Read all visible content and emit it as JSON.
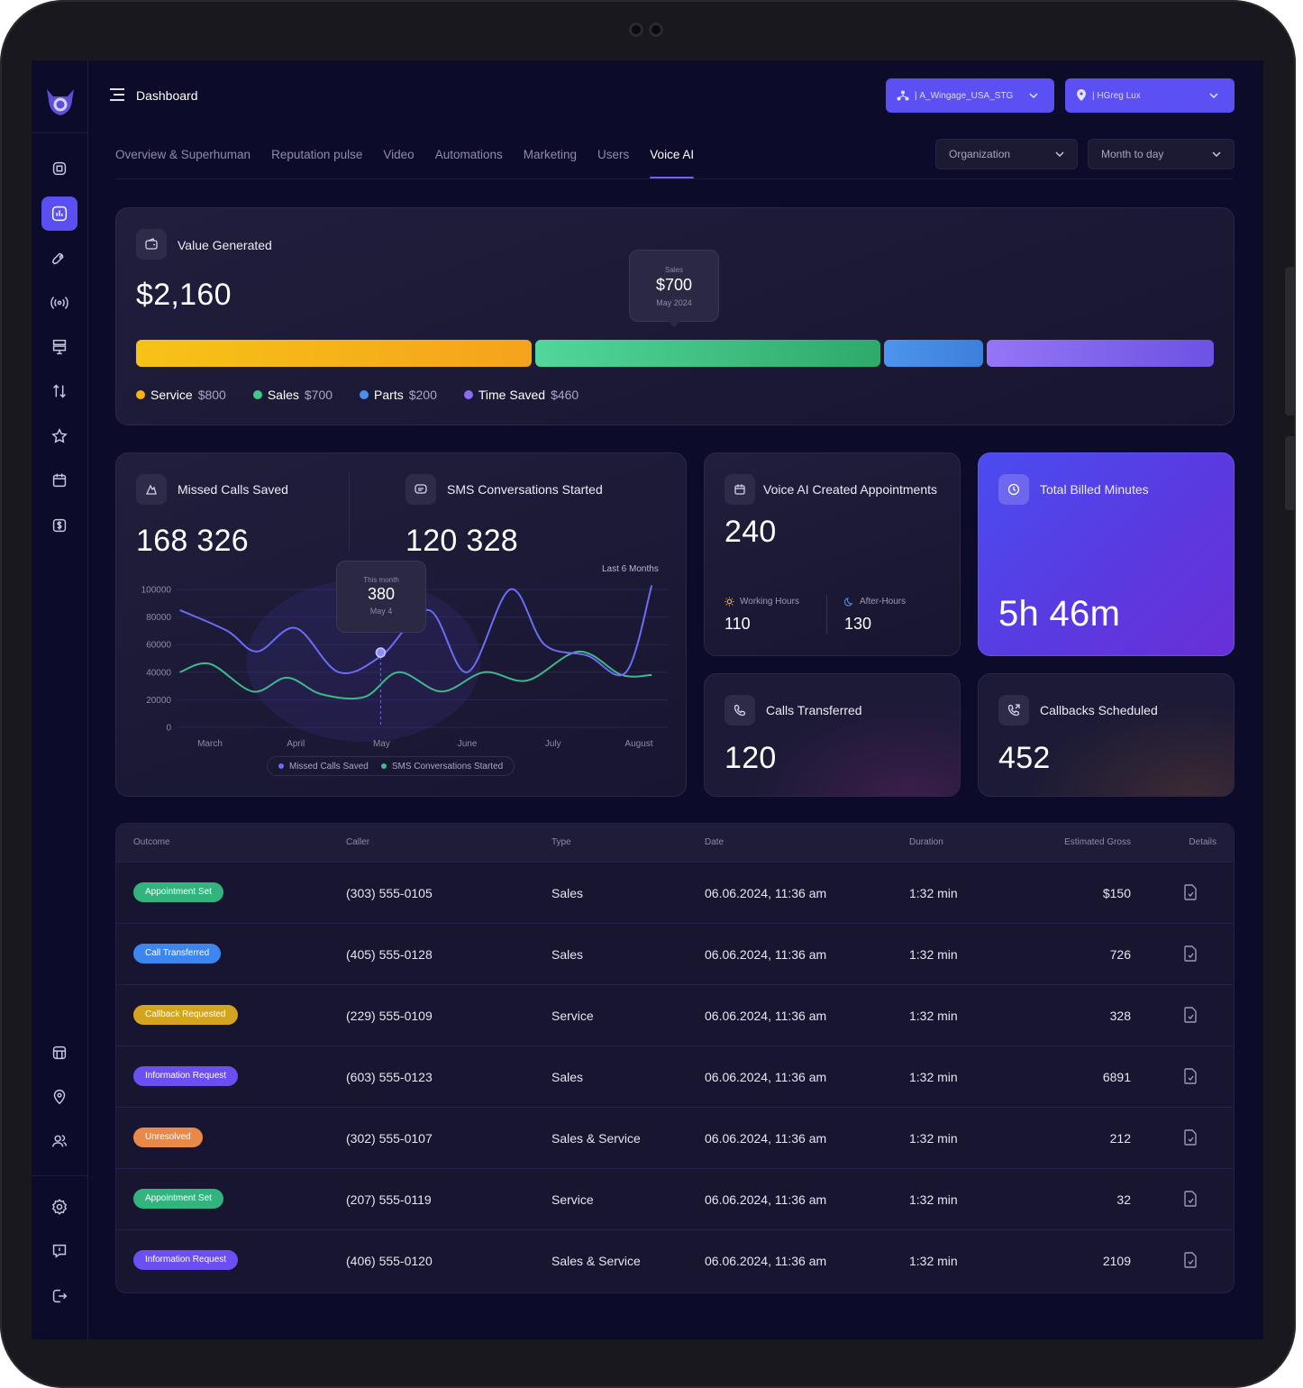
{
  "header": {
    "title": "Dashboard",
    "account_select": "A_Wingage_USA_STG",
    "location_select": "HGreg Lux"
  },
  "tabs": [
    {
      "label": "Overview & Superhuman"
    },
    {
      "label": "Reputation pulse"
    },
    {
      "label": "Video"
    },
    {
      "label": "Automations"
    },
    {
      "label": "Marketing"
    },
    {
      "label": "Users"
    },
    {
      "label": "Voice AI"
    }
  ],
  "filters": {
    "scope": "Organization",
    "period": "Month to day"
  },
  "value_generated": {
    "label": "Value Generated",
    "total": "$2,160",
    "tooltip": {
      "series": "Sales",
      "value": "$700",
      "date": "May 2024"
    },
    "segments": [
      {
        "name": "Service",
        "value": "$800",
        "amount": 800,
        "color": "#f7b414"
      },
      {
        "name": "Sales",
        "value": "$700",
        "amount": 700,
        "color": "#3ec98a"
      },
      {
        "name": "Parts",
        "value": "$200",
        "amount": 200,
        "color": "#4a8fe8"
      },
      {
        "name": "Time Saved",
        "value": "$460",
        "amount": 460,
        "color": "#8a6cf0"
      }
    ]
  },
  "missed_calls": {
    "label": "Missed Calls Saved",
    "value": "168 326"
  },
  "sms": {
    "label": "SMS Conversations Started",
    "value": "120 328"
  },
  "line_chart": {
    "period_label": "Last 6 Months",
    "tooltip": {
      "title": "This month",
      "value": "380",
      "date": "May 4"
    },
    "legend": [
      "Missed Calls Saved",
      "SMS Conversations Started"
    ]
  },
  "chart_data": {
    "type": "line",
    "categories": [
      "March",
      "April",
      "May",
      "June",
      "July",
      "August"
    ],
    "y_ticks": [
      "100000",
      "80000",
      "60000",
      "40000",
      "20000",
      "0"
    ],
    "ylim": [
      0,
      100000
    ],
    "x_range": [
      0,
      5.6
    ],
    "series": [
      {
        "name": "Missed Calls Saved",
        "color": "#6c6cf5",
        "x": [
          -0.35,
          0.2,
          0.55,
          1.0,
          1.5,
          2.0,
          2.55,
          3.0,
          3.5,
          3.9,
          4.4,
          4.85,
          5.15
        ],
        "values": [
          85000,
          70000,
          55000,
          72000,
          40000,
          52000,
          85000,
          40000,
          100000,
          60000,
          52000,
          40000,
          103000
        ]
      },
      {
        "name": "SMS Conversations Started",
        "color": "#3fb98a",
        "x": [
          -0.35,
          0.0,
          0.5,
          0.9,
          1.3,
          1.8,
          2.2,
          2.7,
          3.2,
          3.7,
          4.3,
          4.8,
          5.15
        ],
        "values": [
          40000,
          46000,
          26000,
          36000,
          24000,
          22000,
          40000,
          26000,
          40000,
          34000,
          55000,
          38000,
          38000
        ]
      }
    ]
  },
  "appointments": {
    "label": "Voice AI Created Appointments",
    "value": "240",
    "working_label": "Working Hours",
    "working_value": "110",
    "after_label": "After-Hours",
    "after_value": "130"
  },
  "billed": {
    "label": "Total Billed Minutes",
    "value": "5h 46m"
  },
  "transferred": {
    "label": "Calls Transferred",
    "value": "120"
  },
  "callbacks": {
    "label": "Callbacks Scheduled",
    "value": "452"
  },
  "table": {
    "columns": [
      "Outcome",
      "Caller",
      "Type",
      "Date",
      "Duration",
      "Estimated Gross",
      "Details"
    ],
    "rows": [
      {
        "outcome": "Appointment Set",
        "color": "#33b37d",
        "caller": "(303) 555-0105",
        "type": "Sales",
        "date": "06.06.2024, 11:36 am",
        "duration": "1:32 min",
        "gross": "$150"
      },
      {
        "outcome": "Call Transferred",
        "color": "#3d86f0",
        "caller": "(405) 555-0128",
        "type": "Sales",
        "date": "06.06.2024, 11:36 am",
        "duration": "1:32 min",
        "gross": "726"
      },
      {
        "outcome": "Callback Requested",
        "color": "#d4a41e",
        "caller": "(229) 555-0109",
        "type": "Service",
        "date": "06.06.2024, 11:36 am",
        "duration": "1:32 min",
        "gross": "328"
      },
      {
        "outcome": "Information Request",
        "color": "#6b4ff0",
        "caller": "(603) 555-0123",
        "type": "Sales",
        "date": "06.06.2024, 11:36 am",
        "duration": "1:32 min",
        "gross": "6891"
      },
      {
        "outcome": "Unresolved",
        "color": "#e8894a",
        "caller": "(302) 555-0107",
        "type": "Sales & Service",
        "date": "06.06.2024, 11:36 am",
        "duration": "1:32 min",
        "gross": "212"
      },
      {
        "outcome": "Appointment Set",
        "color": "#33b37d",
        "caller": "(207) 555-0119",
        "type": "Service",
        "date": "06.06.2024, 11:36 am",
        "duration": "1:32 min",
        "gross": "32"
      },
      {
        "outcome": "Information Request",
        "color": "#6b4ff0",
        "caller": "(406) 555-0120",
        "type": "Sales & Service",
        "date": "06.06.2024, 11:36 am",
        "duration": "1:32 min",
        "gross": "2109"
      }
    ]
  }
}
